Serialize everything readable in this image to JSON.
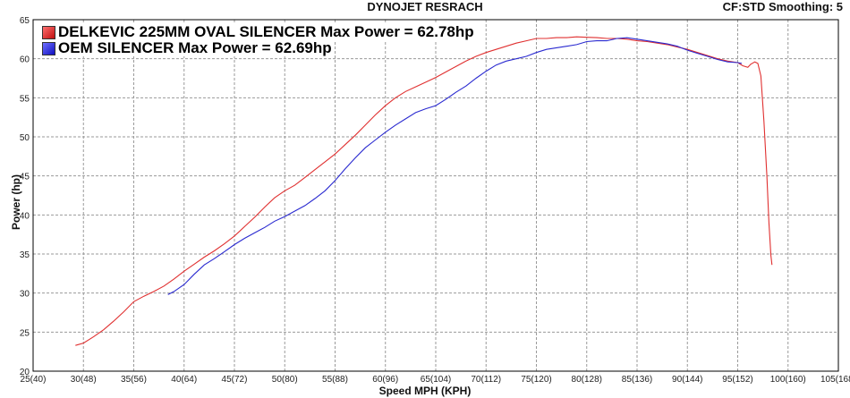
{
  "header": {
    "title": "DYNOJET RESRACH",
    "settings": "CF:STD Smoothing: 5"
  },
  "colors": {
    "background": "#ffffff",
    "grid": "#9a9a9a",
    "series_red": "#e03030",
    "series_blue": "#2a2ad0"
  },
  "chart_data": {
    "type": "line",
    "title": "DYNOJET RESRACH",
    "xlabel": "Speed MPH (KPH)",
    "ylabel": "Power (hp)",
    "xlim": [
      25,
      105
    ],
    "ylim": [
      20,
      65
    ],
    "grid": true,
    "legend_position": "top-left",
    "x_ticks": [
      25,
      30,
      35,
      40,
      45,
      50,
      55,
      60,
      65,
      70,
      75,
      80,
      85,
      90,
      95,
      100,
      105
    ],
    "x_tick_labels": [
      "25(40)",
      "30(48)",
      "35(56)",
      "40(64)",
      "45(72)",
      "50(80)",
      "55(88)",
      "60(96)",
      "65(104)",
      "70(112)",
      "75(120)",
      "80(128)",
      "85(136)",
      "90(144)",
      "95(152)",
      "100(160)",
      "105(168)"
    ],
    "y_ticks": [
      20,
      25,
      30,
      35,
      40,
      45,
      50,
      55,
      60,
      65
    ],
    "y_tick_labels": [
      "20",
      "25",
      "30",
      "35",
      "40",
      "45",
      "50",
      "55",
      "60",
      "65"
    ],
    "series": [
      {
        "name": "DELKEVIC 225MM OVAL SILENCER Max Power = 62.78hp",
        "color": "#e03030",
        "points": [
          [
            29.2,
            23.3
          ],
          [
            30,
            23.6
          ],
          [
            31,
            24.4
          ],
          [
            32,
            25.3
          ],
          [
            33,
            26.4
          ],
          [
            34,
            27.6
          ],
          [
            35,
            28.9
          ],
          [
            36,
            29.6
          ],
          [
            37,
            30.2
          ],
          [
            38,
            30.9
          ],
          [
            39,
            31.8
          ],
          [
            40,
            32.8
          ],
          [
            41,
            33.7
          ],
          [
            42,
            34.6
          ],
          [
            43,
            35.4
          ],
          [
            44,
            36.3
          ],
          [
            45,
            37.3
          ],
          [
            46,
            38.5
          ],
          [
            47,
            39.7
          ],
          [
            48,
            41.0
          ],
          [
            49,
            42.2
          ],
          [
            50,
            43.1
          ],
          [
            51,
            43.8
          ],
          [
            52,
            44.8
          ],
          [
            53,
            45.8
          ],
          [
            54,
            46.8
          ],
          [
            55,
            47.8
          ],
          [
            56,
            49.0
          ],
          [
            57,
            50.2
          ],
          [
            58,
            51.5
          ],
          [
            59,
            52.8
          ],
          [
            60,
            54.0
          ],
          [
            61,
            55.0
          ],
          [
            62,
            55.8
          ],
          [
            63,
            56.4
          ],
          [
            64,
            57.0
          ],
          [
            65,
            57.6
          ],
          [
            66,
            58.3
          ],
          [
            67,
            59.0
          ],
          [
            68,
            59.7
          ],
          [
            69,
            60.3
          ],
          [
            70,
            60.8
          ],
          [
            71,
            61.2
          ],
          [
            72,
            61.6
          ],
          [
            73,
            62.0
          ],
          [
            74,
            62.3
          ],
          [
            75,
            62.6
          ],
          [
            76,
            62.6
          ],
          [
            77,
            62.7
          ],
          [
            78,
            62.7
          ],
          [
            79,
            62.8
          ],
          [
            80,
            62.75
          ],
          [
            81,
            62.7
          ],
          [
            82,
            62.6
          ],
          [
            83,
            62.6
          ],
          [
            84,
            62.5
          ],
          [
            85,
            62.3
          ],
          [
            86,
            62.2
          ],
          [
            87,
            62.0
          ],
          [
            88,
            61.8
          ],
          [
            89,
            61.5
          ],
          [
            90,
            61.2
          ],
          [
            91,
            60.8
          ],
          [
            92,
            60.4
          ],
          [
            93,
            60.0
          ],
          [
            94,
            59.7
          ],
          [
            95,
            59.5
          ],
          [
            95.5,
            59.1
          ],
          [
            96,
            58.9
          ],
          [
            96.3,
            59.3
          ],
          [
            96.7,
            59.6
          ],
          [
            97,
            59.4
          ],
          [
            97.3,
            57.8
          ],
          [
            97.6,
            52.0
          ],
          [
            97.9,
            45.0
          ],
          [
            98.1,
            39.0
          ],
          [
            98.3,
            34.8
          ],
          [
            98.4,
            33.6
          ]
        ]
      },
      {
        "name": "OEM SILENCER Max Power = 62.69hp",
        "color": "#2a2ad0",
        "points": [
          [
            38.4,
            29.8
          ],
          [
            39,
            30.2
          ],
          [
            40,
            31.1
          ],
          [
            41,
            32.4
          ],
          [
            42,
            33.6
          ],
          [
            43,
            34.4
          ],
          [
            44,
            35.3
          ],
          [
            45,
            36.2
          ],
          [
            46,
            37.0
          ],
          [
            47,
            37.7
          ],
          [
            48,
            38.4
          ],
          [
            49,
            39.2
          ],
          [
            50,
            39.8
          ],
          [
            51,
            40.5
          ],
          [
            52,
            41.2
          ],
          [
            53,
            42.1
          ],
          [
            54,
            43.1
          ],
          [
            55,
            44.4
          ],
          [
            56,
            45.9
          ],
          [
            57,
            47.3
          ],
          [
            58,
            48.6
          ],
          [
            59,
            49.6
          ],
          [
            60,
            50.6
          ],
          [
            61,
            51.5
          ],
          [
            62,
            52.3
          ],
          [
            63,
            53.1
          ],
          [
            64,
            53.6
          ],
          [
            65,
            54.0
          ],
          [
            66,
            54.8
          ],
          [
            67,
            55.7
          ],
          [
            68,
            56.5
          ],
          [
            69,
            57.5
          ],
          [
            70,
            58.4
          ],
          [
            71,
            59.2
          ],
          [
            72,
            59.7
          ],
          [
            73,
            60.0
          ],
          [
            74,
            60.3
          ],
          [
            75,
            60.8
          ],
          [
            76,
            61.2
          ],
          [
            77,
            61.4
          ],
          [
            78,
            61.6
          ],
          [
            79,
            61.8
          ],
          [
            80,
            62.2
          ],
          [
            81,
            62.3
          ],
          [
            82,
            62.3
          ],
          [
            83,
            62.6
          ],
          [
            84,
            62.69
          ],
          [
            85,
            62.5
          ],
          [
            86,
            62.3
          ],
          [
            87,
            62.1
          ],
          [
            88,
            61.9
          ],
          [
            89,
            61.6
          ],
          [
            90,
            61.1
          ],
          [
            91,
            60.7
          ],
          [
            92,
            60.3
          ],
          [
            93,
            59.9
          ],
          [
            94,
            59.6
          ],
          [
            95,
            59.5
          ],
          [
            95.4,
            59.4
          ]
        ]
      }
    ]
  }
}
